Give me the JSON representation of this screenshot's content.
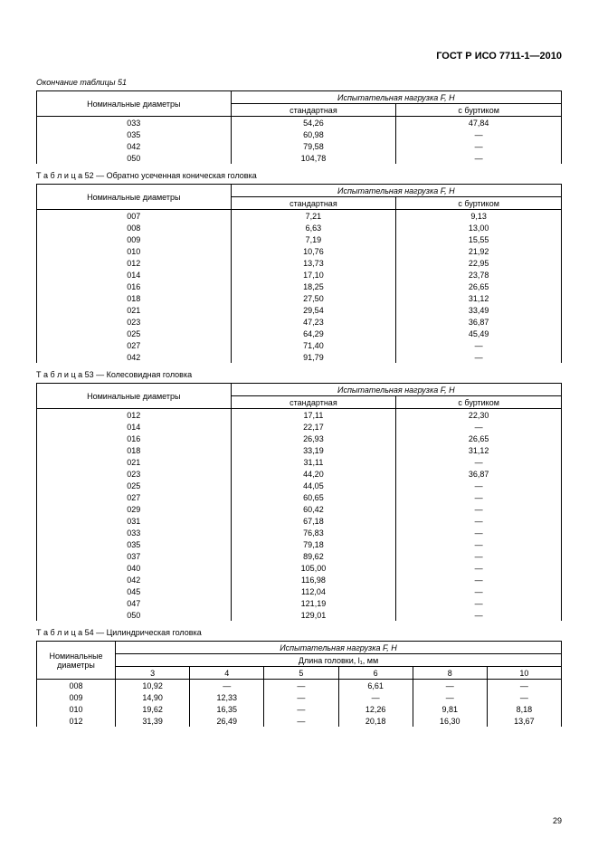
{
  "doc_id": "ГОСТ Р ИСО 7711-1—2010",
  "page_number": "29",
  "captions": {
    "t51_end": "Окончание таблицы 51",
    "t52": "Т а б л и ц а  52 — Обратно усеченная коническая головка",
    "t53": "Т а б л и ц а  53 — Колесовидная головка",
    "t54": "Т а б л и ц а  54 — Цилиндрическая головка"
  },
  "headers": {
    "nom_dia": "Номинальные диаметры",
    "nom_dia_multi": "Номинальные\nдиаметры",
    "load": "Испытательная нагрузка F, Н",
    "std": "стандартная",
    "collar": "с буртиком",
    "head_len": "Длина головки, l₁, мм",
    "len_cols": [
      "3",
      "4",
      "5",
      "6",
      "8",
      "10"
    ]
  },
  "t51": {
    "rows": [
      [
        "033",
        "54,26",
        "47,84"
      ],
      [
        "035",
        "60,98",
        "—"
      ],
      [
        "042",
        "79,58",
        "—"
      ],
      [
        "050",
        "104,78",
        "—"
      ]
    ]
  },
  "t52": {
    "rows": [
      [
        "007",
        "7,21",
        "9,13"
      ],
      [
        "008",
        "6,63",
        "13,00"
      ],
      [
        "009",
        "7,19",
        "15,55"
      ],
      [
        "010",
        "10,76",
        "21,92"
      ],
      [
        "012",
        "13,73",
        "22,95"
      ],
      [
        "014",
        "17,10",
        "23,78"
      ],
      [
        "016",
        "18,25",
        "26,65"
      ],
      [
        "018",
        "27,50",
        "31,12"
      ],
      [
        "021",
        "29,54",
        "33,49"
      ],
      [
        "023",
        "47,23",
        "36,87"
      ],
      [
        "025",
        "64,29",
        "45,49"
      ],
      [
        "027",
        "71,40",
        "—"
      ],
      [
        "042",
        "91,79",
        "—"
      ]
    ]
  },
  "t53": {
    "rows": [
      [
        "012",
        "17,11",
        "22,30"
      ],
      [
        "014",
        "22,17",
        "—"
      ],
      [
        "016",
        "26,93",
        "26,65"
      ],
      [
        "018",
        "33,19",
        "31,12"
      ],
      [
        "021",
        "31,11",
        "—"
      ],
      [
        "023",
        "44,20",
        "36,87"
      ],
      [
        "025",
        "44,05",
        "—"
      ],
      [
        "027",
        "60,65",
        "—"
      ],
      [
        "029",
        "60,42",
        "—"
      ],
      [
        "031",
        "67,18",
        "—"
      ],
      [
        "033",
        "76,83",
        "—"
      ],
      [
        "035",
        "79,18",
        "—"
      ],
      [
        "037",
        "89,62",
        "—"
      ],
      [
        "040",
        "105,00",
        "—"
      ],
      [
        "042",
        "116,98",
        "—"
      ],
      [
        "045",
        "112,04",
        "—"
      ],
      [
        "047",
        "121,19",
        "—"
      ],
      [
        "050",
        "129,01",
        "—"
      ]
    ]
  },
  "t54": {
    "rows": [
      [
        "008",
        "10,92",
        "—",
        "—",
        "6,61",
        "—",
        "—"
      ],
      [
        "009",
        "14,90",
        "12,33",
        "—",
        "—",
        "—",
        "—"
      ],
      [
        "010",
        "19,62",
        "16,35",
        "—",
        "12,26",
        "9,81",
        "8,18"
      ],
      [
        "012",
        "31,39",
        "26,49",
        "—",
        "20,18",
        "16,30",
        "13,67"
      ]
    ]
  },
  "style": {
    "font_family": "Arial",
    "base_fontsize_pt": 9,
    "border_color": "#000000",
    "background": "#ffffff",
    "col_widths_3col_pct": [
      37,
      31.5,
      31.5
    ],
    "col_widths_t54_pct": [
      15,
      14.16,
      14.16,
      14.16,
      14.16,
      14.16,
      14.16
    ]
  }
}
